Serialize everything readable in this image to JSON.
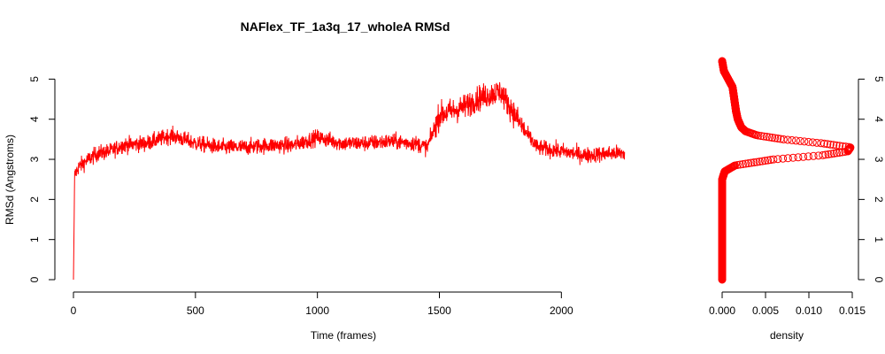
{
  "chart_data": [
    {
      "type": "line",
      "title": "NAFlex_TF_1a3q_17_wholeA RMSd",
      "xlabel": "Time (frames)",
      "ylabel": "RMSd (Angstroms)",
      "xlim": [
        0,
        2260
      ],
      "ylim": [
        0,
        5.45
      ],
      "x_ticks": [
        0,
        500,
        1000,
        1500,
        2000
      ],
      "y_ticks": [
        0,
        1,
        2,
        3,
        4,
        5
      ],
      "color": "#ff0000",
      "n_frames": 2260,
      "series": [
        {
          "x": [
            0,
            5,
            20,
            50,
            100,
            150,
            200,
            300,
            400,
            500,
            600,
            700,
            800,
            900,
            1000,
            1100,
            1200,
            1300,
            1400,
            1450,
            1500,
            1550,
            1600,
            1650,
            1700,
            1750,
            1800,
            1850,
            1900,
            2000,
            2100,
            2200,
            2260
          ],
          "values": [
            0.0,
            2.6,
            2.8,
            2.95,
            3.15,
            3.2,
            3.35,
            3.4,
            3.6,
            3.4,
            3.3,
            3.3,
            3.35,
            3.35,
            3.55,
            3.4,
            3.4,
            3.45,
            3.4,
            3.3,
            4.1,
            4.2,
            4.3,
            4.5,
            4.6,
            4.7,
            4.2,
            3.7,
            3.3,
            3.2,
            3.1,
            3.15,
            3.15
          ]
        }
      ]
    },
    {
      "type": "scatter",
      "xlabel": "density",
      "xlim": [
        0,
        0.015
      ],
      "ylim": [
        0,
        5.45
      ],
      "x_ticks": [
        "0.000",
        "0.005",
        "0.010",
        "0.015"
      ],
      "y_ticks": [
        0,
        1,
        2,
        3,
        4,
        5
      ],
      "color": "#ff0000",
      "n_points": 512,
      "series": [
        {
          "y": [
            0.0,
            2.5,
            2.7,
            2.85,
            3.0,
            3.1,
            3.2,
            3.3,
            3.4,
            3.5,
            3.6,
            3.7,
            3.8,
            3.9,
            4.0,
            4.2,
            4.5,
            4.8,
            5.0,
            5.2,
            5.45
          ],
          "density": [
            0.0,
            0.0,
            0.0003,
            0.0015,
            0.006,
            0.0115,
            0.0145,
            0.0148,
            0.0115,
            0.007,
            0.004,
            0.0027,
            0.0022,
            0.002,
            0.0018,
            0.0016,
            0.0014,
            0.0012,
            0.0007,
            0.0002,
            0.0
          ]
        }
      ]
    }
  ]
}
